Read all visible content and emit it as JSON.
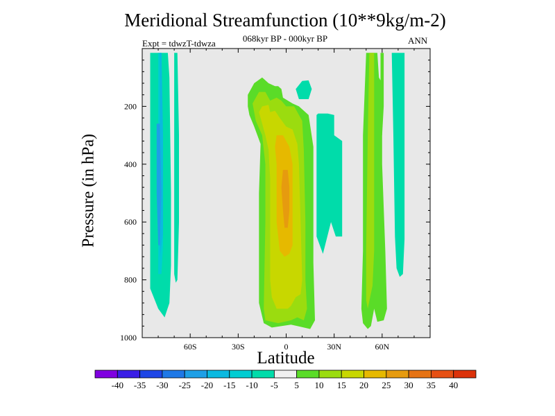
{
  "chart_data": {
    "type": "contour",
    "title": "Meridional Streamfunction (10**9kg/m-2)",
    "subtitle": "068kyr BP - 000kyr BP",
    "experiment": "Expt = tdwzT-tdwza",
    "season": "ANN",
    "xlabel": "Latitude",
    "ylabel": "Pressure (in hPa)",
    "x_ticks": [
      "60S",
      "30S",
      "0",
      "30N",
      "60N"
    ],
    "x_tick_values": [
      -60,
      -30,
      0,
      30,
      60
    ],
    "xlim": [
      -90,
      90
    ],
    "y_ticks": [
      200,
      400,
      600,
      800,
      1000
    ],
    "ylim": [
      0,
      1000
    ],
    "y_reversed": true,
    "background_color": "#e8e8e8",
    "colorbar": {
      "labels": [
        "-40",
        "-35",
        "-30",
        "-25",
        "-20",
        "-15",
        "-10",
        "-5",
        "5",
        "10",
        "15",
        "20",
        "25",
        "30",
        "35",
        "40"
      ],
      "colors": [
        "#8000e0",
        "#3a1ee6",
        "#1e46e6",
        "#1e78e6",
        "#1e9fe6",
        "#0ab9e0",
        "#00cdd2",
        "#00dcaa",
        "#f0f0f0",
        "#5adc28",
        "#9bdc0f",
        "#c8d700",
        "#e6b900",
        "#e69b0f",
        "#e67314",
        "#e65014",
        "#dc320a"
      ]
    },
    "regions": [
      {
        "level": -10,
        "color": "#00dcaa",
        "polygon": [
          [
            -90,
            15
          ],
          [
            -85,
            15
          ],
          [
            -85,
            830
          ],
          [
            -80,
            900
          ],
          [
            -76,
            930
          ],
          [
            -73,
            880
          ],
          [
            -72,
            750
          ],
          [
            -72,
            500
          ],
          [
            -73,
            100
          ],
          [
            -74,
            15
          ],
          [
            -90,
            15
          ]
        ]
      },
      {
        "level": -15,
        "color": "#00cdd2",
        "polygon": [
          [
            -88,
            15
          ],
          [
            -80,
            15
          ],
          [
            -80,
            700
          ],
          [
            -80,
            780
          ],
          [
            -78,
            780
          ],
          [
            -77,
            680
          ],
          [
            -77,
            400
          ],
          [
            -78,
            15
          ],
          [
            -88,
            15
          ]
        ]
      },
      {
        "level": -20,
        "color": "#0ab9e0",
        "polygon": [
          [
            -84,
            15
          ],
          [
            -79,
            15
          ],
          [
            -79,
            640
          ],
          [
            -79,
            720
          ],
          [
            -77,
            640
          ],
          [
            -77,
            300
          ],
          [
            -78,
            15
          ],
          [
            -84,
            15
          ]
        ]
      },
      {
        "level": -25,
        "color": "#1e9fe6",
        "polygon": [
          [
            -81,
            260
          ],
          [
            -79,
            260
          ],
          [
            -78,
            500
          ],
          [
            -79,
            680
          ],
          [
            -80,
            680
          ],
          [
            -81,
            500
          ],
          [
            -81,
            260
          ]
        ]
      },
      {
        "level": -10,
        "color": "#00dcaa",
        "polygon": [
          [
            -70,
            15
          ],
          [
            -68,
            15
          ],
          [
            -67,
            300
          ],
          [
            -67,
            600
          ],
          [
            -68,
            800
          ],
          [
            -69,
            810
          ],
          [
            -70,
            780
          ],
          [
            -70,
            15
          ]
        ]
      },
      {
        "level": -10,
        "color": "#00dcaa",
        "polygon": [
          [
            6,
            140
          ],
          [
            10,
            112
          ],
          [
            14,
            110
          ],
          [
            16,
            140
          ],
          [
            14,
            175
          ],
          [
            8,
            175
          ],
          [
            6,
            140
          ]
        ]
      },
      {
        "level": -10,
        "color": "#00dcaa",
        "polygon": [
          [
            19,
            230
          ],
          [
            20,
            225
          ],
          [
            26,
            225
          ],
          [
            30,
            230
          ],
          [
            30,
            300
          ],
          [
            35,
            320
          ],
          [
            35,
            650
          ],
          [
            31,
            650
          ],
          [
            28,
            600
          ],
          [
            23,
            710
          ],
          [
            19,
            650
          ],
          [
            19,
            230
          ]
        ]
      },
      {
        "level": -10,
        "color": "#00dcaa",
        "polygon": [
          [
            66,
            15
          ],
          [
            74,
            15
          ],
          [
            74,
            660
          ],
          [
            73,
            780
          ],
          [
            71,
            790
          ],
          [
            69,
            760
          ],
          [
            68,
            650
          ],
          [
            67,
            300
          ],
          [
            66,
            15
          ]
        ]
      },
      {
        "level": 5,
        "color": "#5adc28",
        "polygon": [
          [
            -24,
            160
          ],
          [
            -20,
            120
          ],
          [
            -15,
            100
          ],
          [
            -11,
            120
          ],
          [
            -7,
            130
          ],
          [
            -5,
            130
          ],
          [
            -3,
            140
          ],
          [
            -2,
            170
          ],
          [
            4,
            190
          ],
          [
            8,
            200
          ],
          [
            14,
            230
          ],
          [
            17,
            340
          ],
          [
            17,
            740
          ],
          [
            18,
            940
          ],
          [
            15,
            970
          ],
          [
            7,
            960
          ],
          [
            3,
            955
          ],
          [
            -9,
            965
          ],
          [
            -14,
            950
          ],
          [
            -17,
            880
          ],
          [
            -17,
            500
          ],
          [
            -16,
            330
          ],
          [
            -20,
            270
          ],
          [
            -23,
            230
          ],
          [
            -24,
            200
          ],
          [
            -24,
            160
          ]
        ]
      },
      {
        "level": 10,
        "color": "#9bdc0f",
        "polygon": [
          [
            -21,
            190
          ],
          [
            -17,
            150
          ],
          [
            -13,
            150
          ],
          [
            -10,
            180
          ],
          [
            -6,
            170
          ],
          [
            -3,
            180
          ],
          [
            0,
            200
          ],
          [
            5,
            200
          ],
          [
            10,
            250
          ],
          [
            11,
            350
          ],
          [
            12,
            600
          ],
          [
            12,
            800
          ],
          [
            13,
            900
          ],
          [
            11,
            940
          ],
          [
            7,
            930
          ],
          [
            3,
            940
          ],
          [
            -5,
            950
          ],
          [
            -13,
            940
          ],
          [
            -14,
            900
          ],
          [
            -13,
            600
          ],
          [
            -13,
            400
          ],
          [
            -15,
            300
          ],
          [
            -19,
            250
          ],
          [
            -21,
            190
          ]
        ]
      },
      {
        "level": 15,
        "color": "#c8d700",
        "polygon": [
          [
            -17,
            220
          ],
          [
            -15,
            200
          ],
          [
            -11,
            195
          ],
          [
            -10,
            220
          ],
          [
            -7,
            215
          ],
          [
            -4,
            240
          ],
          [
            0,
            270
          ],
          [
            4,
            280
          ],
          [
            7,
            330
          ],
          [
            8,
            400
          ],
          [
            9,
            600
          ],
          [
            10,
            800
          ],
          [
            9,
            850
          ],
          [
            6,
            860
          ],
          [
            3,
            890
          ],
          [
            1,
            900
          ],
          [
            -6,
            900
          ],
          [
            -9,
            860
          ],
          [
            -10,
            800
          ],
          [
            -10,
            600
          ],
          [
            -10,
            450
          ],
          [
            -11,
            350
          ],
          [
            -13,
            300
          ],
          [
            -15,
            260
          ],
          [
            -17,
            220
          ]
        ]
      },
      {
        "level": 20,
        "color": "#e6b900",
        "polygon": [
          [
            -6,
            300
          ],
          [
            -2,
            300
          ],
          [
            2,
            340
          ],
          [
            4,
            400
          ],
          [
            4,
            600
          ],
          [
            4,
            680
          ],
          [
            2,
            710
          ],
          [
            -1,
            720
          ],
          [
            -4,
            700
          ],
          [
            -6,
            600
          ],
          [
            -6,
            400
          ],
          [
            -7,
            340
          ],
          [
            -6,
            300
          ]
        ]
      },
      {
        "level": 25,
        "color": "#e69b0f",
        "polygon": [
          [
            -2,
            420
          ],
          [
            1,
            420
          ],
          [
            2,
            480
          ],
          [
            2,
            560
          ],
          [
            1,
            620
          ],
          [
            -1,
            620
          ],
          [
            -2,
            560
          ],
          [
            -3,
            480
          ],
          [
            -2,
            420
          ]
        ]
      },
      {
        "level": 5,
        "color": "#5adc28",
        "polygon": [
          [
            50,
            15
          ],
          [
            57,
            15
          ],
          [
            58,
            100
          ],
          [
            60,
            120
          ],
          [
            60,
            400
          ],
          [
            62,
            700
          ],
          [
            63,
            900
          ],
          [
            61,
            940
          ],
          [
            57,
            945
          ],
          [
            55,
            900
          ],
          [
            53,
            960
          ],
          [
            51,
            970
          ],
          [
            48,
            950
          ],
          [
            47,
            900
          ],
          [
            48,
            700
          ],
          [
            48,
            300
          ],
          [
            50,
            15
          ]
        ]
      },
      {
        "level": 10,
        "color": "#9bdc0f",
        "polygon": [
          [
            52,
            15
          ],
          [
            55,
            15
          ],
          [
            55,
            400
          ],
          [
            55,
            700
          ],
          [
            54,
            820
          ],
          [
            51,
            900
          ],
          [
            50,
            870
          ],
          [
            50,
            700
          ],
          [
            51,
            300
          ],
          [
            52,
            15
          ]
        ]
      },
      {
        "level": 5,
        "color": "#5adc28",
        "polygon": [
          [
            59,
            15
          ],
          [
            61,
            15
          ],
          [
            61,
            200
          ],
          [
            60,
            300
          ],
          [
            59,
            300
          ],
          [
            59,
            15
          ]
        ]
      }
    ]
  }
}
